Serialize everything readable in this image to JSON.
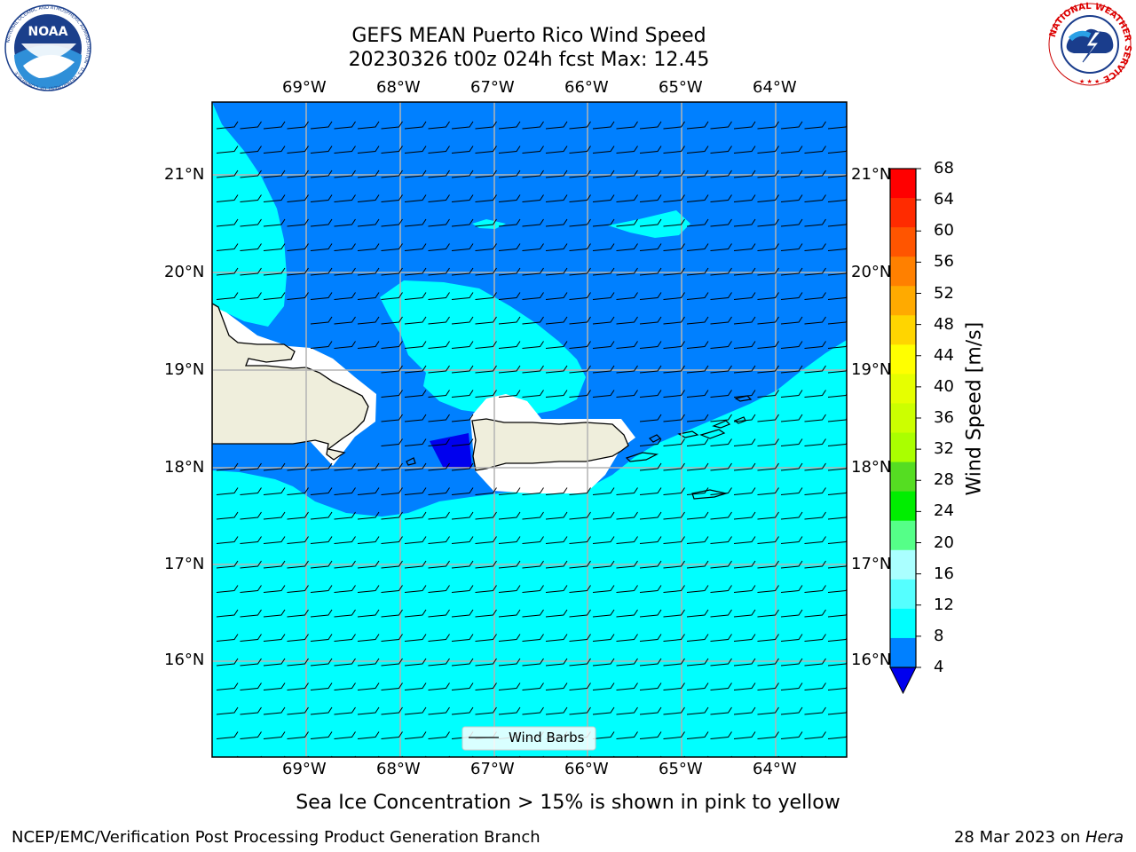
{
  "title": {
    "line1": "GEFS MEAN Puerto Rico Wind Speed",
    "line2": "20230326 t00z 024h fcst   Max: 12.45"
  },
  "map": {
    "lon_labels": [
      "69°W",
      "68°W",
      "67°W",
      "66°W",
      "65°W",
      "64°W"
    ],
    "lat_labels": [
      "21°N",
      "20°N",
      "19°N",
      "18°N",
      "17°N",
      "16°N"
    ],
    "legend_label": "Wind Barbs",
    "land_color": "#efeedc",
    "colors": {
      "c4_8": "#0080ff",
      "c8_12": "#00ffff",
      "c0_4": "#0000ee"
    }
  },
  "colorbar": {
    "label": "Wind Speed [m/s]",
    "ticks": [
      "68",
      "64",
      "60",
      "56",
      "52",
      "48",
      "44",
      "40",
      "36",
      "32",
      "28",
      "24",
      "20",
      "16",
      "12",
      "8",
      "4"
    ],
    "colors": [
      "#ff0000",
      "#ff2b00",
      "#ff5500",
      "#ff8000",
      "#ffaa00",
      "#ffd500",
      "#ffff00",
      "#e6ff00",
      "#ccff00",
      "#aaff00",
      "#55dd22",
      "#00ee00",
      "#55ff88",
      "#aaffff",
      "#55ffff",
      "#00ffff",
      "#0080ff"
    ],
    "under_color": "#0000ee"
  },
  "caption": "Sea Ice Concentration > 15% is shown in pink to yellow",
  "footer": {
    "left": "NCEP/EMC/Verification Post Processing Product Generation Branch",
    "date": "28 Mar 2023 on ",
    "machine": "Hera"
  },
  "logos": {
    "noaa_text": "NOAA",
    "noaa_ring": "NATIONAL OCEANIC AND ATMOSPHERIC ADMINISTRATION · U.S. DEPARTMENT OF COMMERCE",
    "nws_ring": "NATIONAL WEATHER SERVICE"
  }
}
